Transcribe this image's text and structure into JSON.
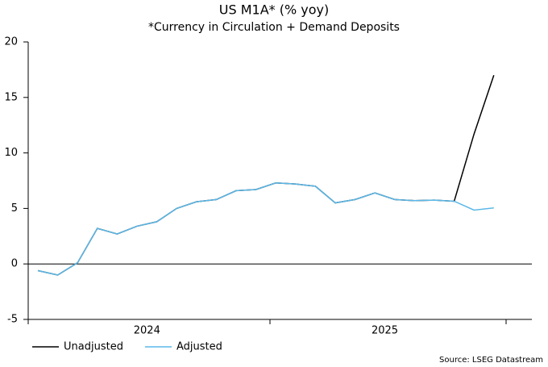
{
  "chart_data": {
    "type": "line",
    "title": "US M1A* (% yoy)",
    "subtitle": "*Currency in Circulation + Demand Deposits",
    "source": "Source: LSEG Datastream",
    "categories": [
      null,
      null,
      null,
      null,
      null,
      "2024",
      null,
      null,
      null,
      null,
      null,
      null,
      null,
      null,
      null,
      null,
      null,
      "2025",
      null,
      null,
      null,
      null,
      null,
      null
    ],
    "series": [
      {
        "name": "Unadjusted",
        "color": "#000000",
        "values": [
          -0.6,
          -1.0,
          0.1,
          3.2,
          2.7,
          3.4,
          3.8,
          5.0,
          5.6,
          5.8,
          6.6,
          6.7,
          7.3,
          7.2,
          7.0,
          5.5,
          5.8,
          6.4,
          5.8,
          5.7,
          5.75,
          5.65,
          11.7,
          17.0
        ]
      },
      {
        "name": "Adjusted",
        "color": "#5bb8e8",
        "values": [
          -0.6,
          -1.0,
          0.1,
          3.2,
          2.7,
          3.4,
          3.8,
          5.0,
          5.6,
          5.8,
          6.6,
          6.7,
          7.3,
          7.2,
          7.0,
          5.5,
          5.8,
          6.4,
          5.8,
          5.7,
          5.75,
          5.65,
          4.85,
          5.05
        ]
      }
    ],
    "ylim": [
      -5,
      20
    ],
    "yticks": [
      -5,
      0,
      5,
      10,
      15,
      20
    ],
    "grid": false,
    "legend": "bottom-left"
  }
}
